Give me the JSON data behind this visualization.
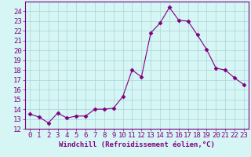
{
  "x": [
    0,
    1,
    2,
    3,
    4,
    5,
    6,
    7,
    8,
    9,
    10,
    11,
    12,
    13,
    14,
    15,
    16,
    17,
    18,
    19,
    20,
    21,
    22,
    23
  ],
  "y": [
    13.5,
    13.2,
    12.6,
    13.6,
    13.1,
    13.3,
    13.3,
    14.0,
    14.0,
    14.1,
    15.3,
    18.0,
    17.3,
    21.8,
    22.8,
    24.4,
    23.1,
    23.0,
    21.6,
    20.1,
    18.2,
    18.0,
    17.2,
    16.5
  ],
  "line_color": "#800080",
  "marker": "D",
  "marker_size": 2.5,
  "bg_color": "#d6f5f5",
  "grid_color": "#aad4d4",
  "xlabel": "Windchill (Refroidissement éolien,°C)",
  "ylim": [
    12,
    25
  ],
  "xlim": [
    -0.5,
    23.5
  ],
  "yticks": [
    12,
    13,
    14,
    15,
    16,
    17,
    18,
    19,
    20,
    21,
    22,
    23,
    24
  ],
  "xticks": [
    0,
    1,
    2,
    3,
    4,
    5,
    6,
    7,
    8,
    9,
    10,
    11,
    12,
    13,
    14,
    15,
    16,
    17,
    18,
    19,
    20,
    21,
    22,
    23
  ],
  "tick_color": "#800080",
  "label_color": "#800080",
  "font_size_xlabel": 6.5,
  "font_size_tick": 6.5
}
